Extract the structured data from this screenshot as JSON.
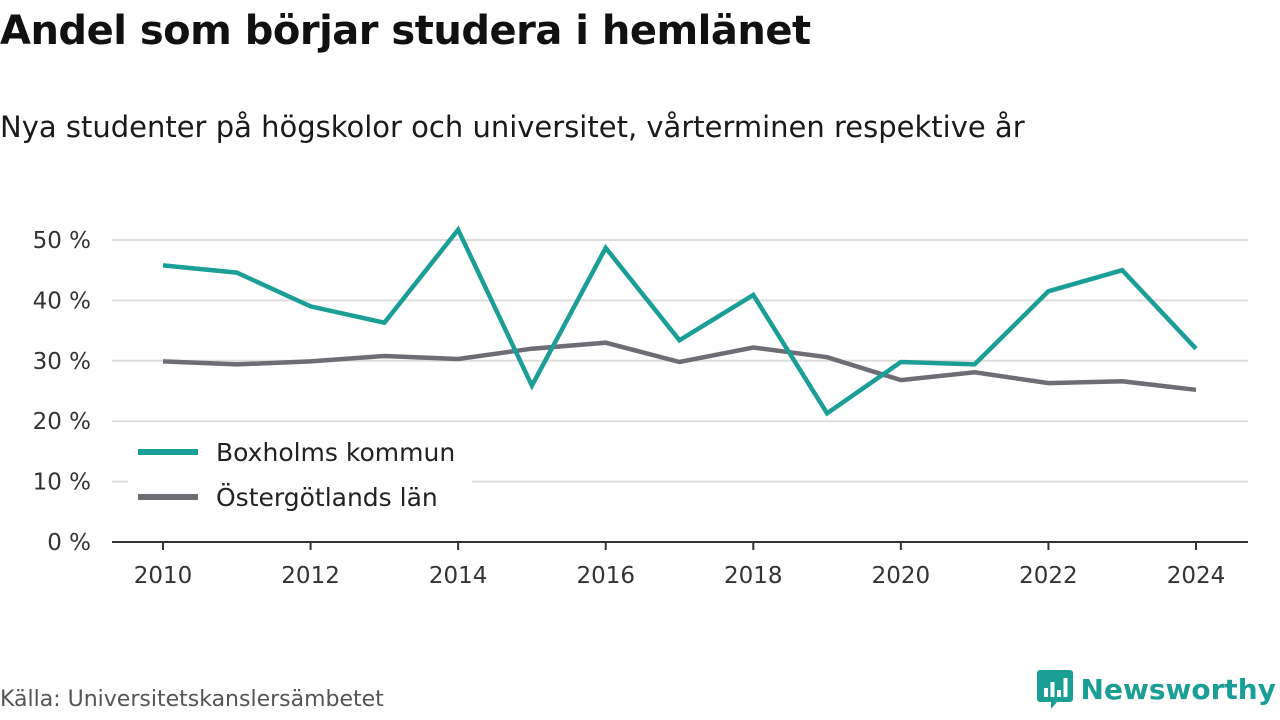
{
  "title": "Andel som börjar studera i hemlänet",
  "subtitle": "Nya studenter på högskolor och universitet, vårterminen respektive år",
  "source": "Källa: Universitetskanslersämbetet",
  "brand": {
    "name": "Newsworthy",
    "color": "#1a9e96",
    "icon": "bar-chart-speech-bubble-icon"
  },
  "chart_data": {
    "type": "line",
    "title": "Andel som börjar studera i hemlänet",
    "subtitle": "Nya studenter på högskolor och universitet, vårterminen respektive år",
    "xlabel": "",
    "ylabel": "",
    "x": [
      2010,
      2011,
      2012,
      2013,
      2014,
      2015,
      2016,
      2017,
      2018,
      2019,
      2020,
      2021,
      2022,
      2023,
      2024
    ],
    "x_ticks": [
      "2010",
      "2012",
      "2014",
      "2016",
      "2018",
      "2020",
      "2022",
      "2024"
    ],
    "y_ticks": [
      "0 %",
      "10 %",
      "20 %",
      "30 %",
      "40 %",
      "50 %"
    ],
    "ylim": [
      0,
      50
    ],
    "grid": true,
    "legend_position": "bottom-left",
    "series": [
      {
        "name": "Boxholms kommun",
        "color": "#1a9e96",
        "values": [
          45.8,
          44.6,
          39.0,
          36.3,
          51.7,
          25.9,
          48.7,
          33.4,
          40.9,
          21.3,
          29.8,
          29.4,
          41.5,
          45.0,
          32.0
        ]
      },
      {
        "name": "Östergötlands län",
        "color": "#6e6d76",
        "values": [
          29.9,
          29.4,
          29.9,
          30.8,
          30.3,
          32.0,
          33.0,
          29.8,
          32.2,
          30.6,
          26.8,
          28.1,
          26.3,
          26.6,
          25.2
        ]
      }
    ]
  }
}
